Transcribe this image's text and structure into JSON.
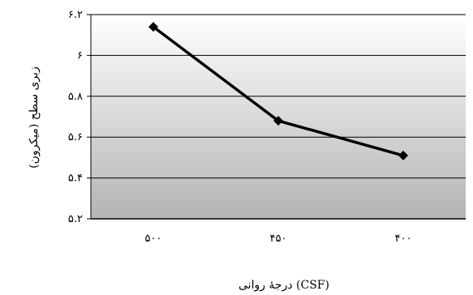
{
  "chart_data": {
    "type": "line",
    "title": "",
    "xlabel": "درجهٔ روانی (CSF)",
    "ylabel": "زبری سطح (میکرون)",
    "categories": [
      "۵۰۰",
      "۴۵۰",
      "۴۰۰"
    ],
    "series": [
      {
        "values": [
          6.14,
          5.68,
          5.51
        ]
      }
    ],
    "ylim": [
      5.2,
      6.2
    ],
    "yticks": [
      5.2,
      5.4,
      5.6,
      5.8,
      6.0,
      6.2
    ],
    "ytick_labels": [
      "۵.۲",
      "۵.۴",
      "۵.۶",
      "۵.۸",
      "۶",
      "۶.۲"
    ],
    "grid": true,
    "legend": "none",
    "colors": {
      "line": "#000000",
      "grid": "#000000",
      "plot_bg_top": "#ffffff",
      "plot_bg_bottom": "#b4b4b4"
    }
  }
}
